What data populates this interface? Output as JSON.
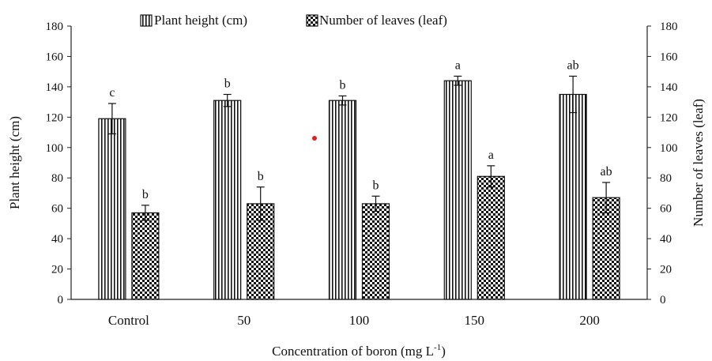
{
  "chart_data": {
    "type": "bar",
    "categories": [
      "Control",
      "50",
      "100",
      "150",
      "200"
    ],
    "xlabel": "Concentration  of boron (mg L",
    "xlabel_sup": "-1",
    "xlabel_tail": ")",
    "ylabel": "Plant height (cm)",
    "y2label": "Number of leaves (leaf)",
    "ylim": [
      0,
      180
    ],
    "y2lim": [
      0,
      180
    ],
    "yticks": [
      0,
      20,
      40,
      60,
      80,
      100,
      120,
      140,
      160,
      180
    ],
    "legend_position": "top-center",
    "series": [
      {
        "name": "Plant height (cm)",
        "axis": "left",
        "pattern": "vertical-stripes",
        "values": [
          119,
          131,
          131,
          144,
          135
        ],
        "errors": [
          10,
          4,
          3,
          3,
          12
        ],
        "letters": [
          "c",
          "b",
          "b",
          "a",
          "ab"
        ]
      },
      {
        "name": "Number of leaves (leaf)",
        "axis": "right",
        "pattern": "checker",
        "values": [
          57,
          63,
          63,
          81,
          67
        ],
        "errors": [
          5,
          11,
          5,
          7,
          10
        ],
        "letters": [
          "b",
          "b",
          "b",
          "a",
          "ab"
        ]
      }
    ]
  }
}
